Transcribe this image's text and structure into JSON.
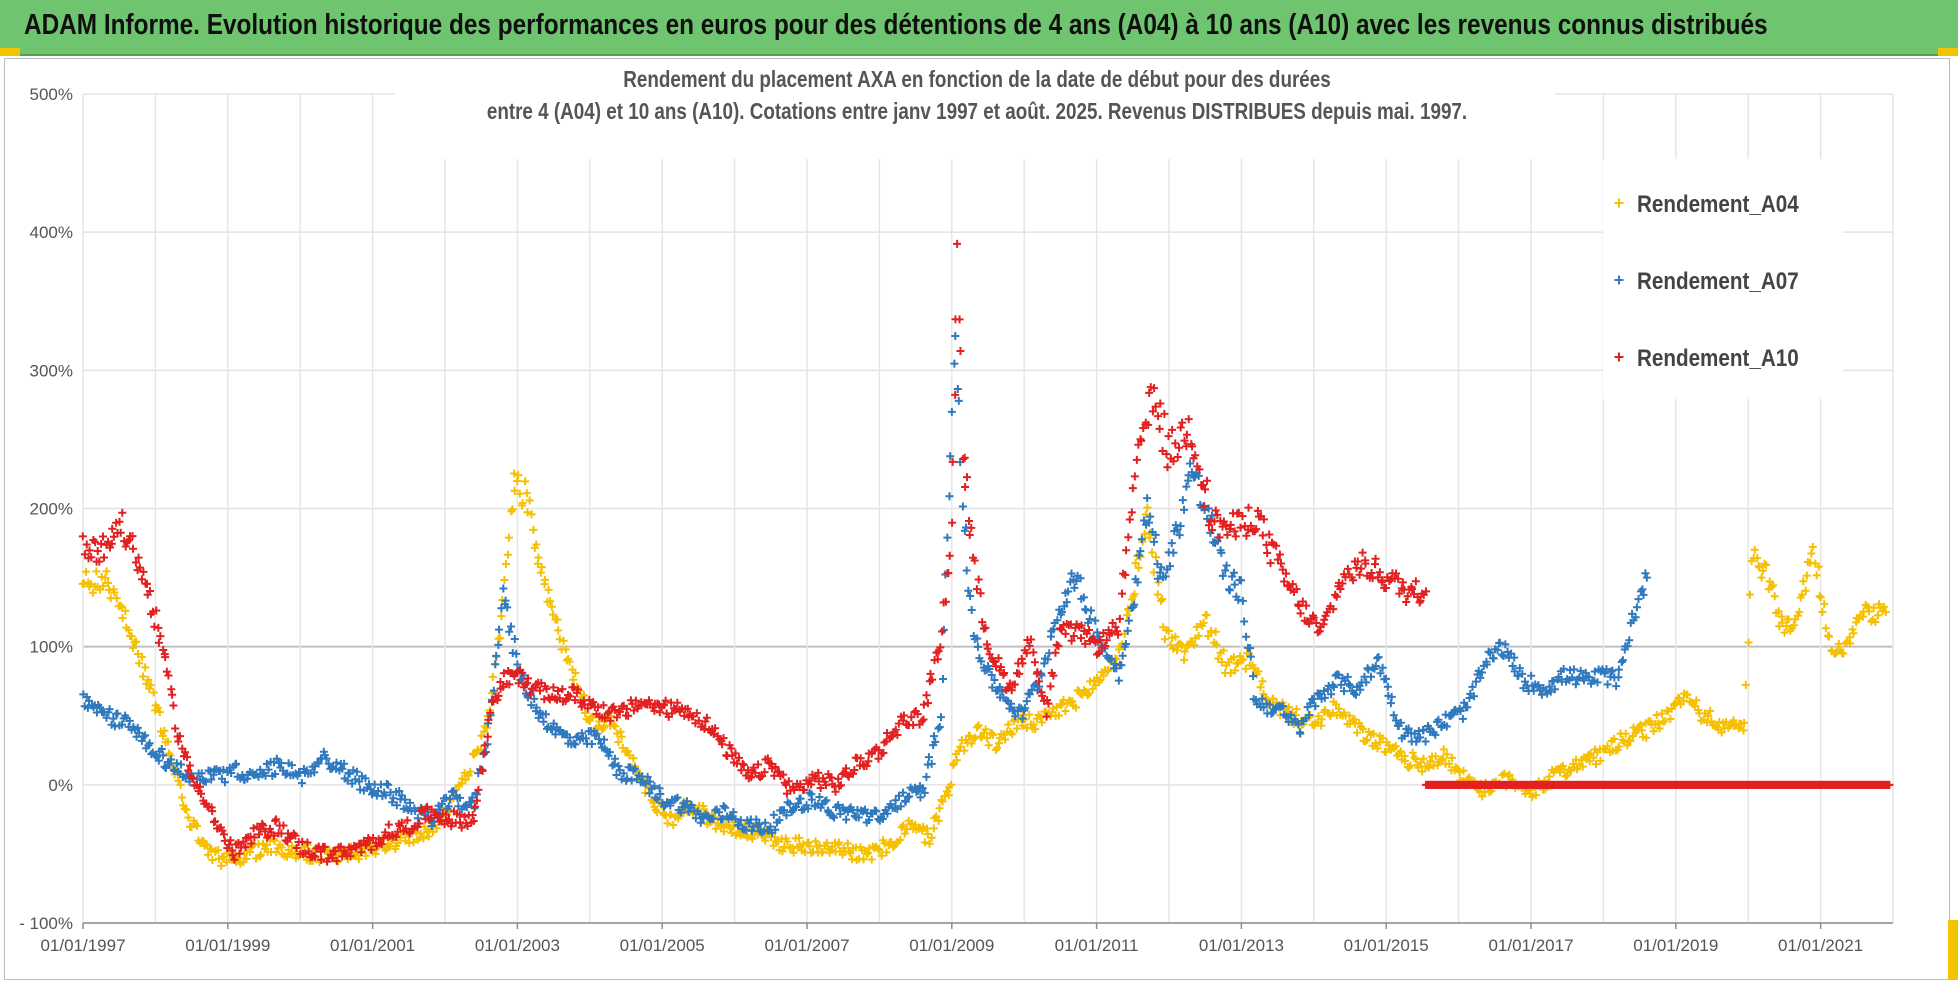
{
  "banner": {
    "text": "ADAM Informe. Evolution historique des performances en euros pour des détentions de 4 ans (A04) à 10 ans (A10) avec les revenus connus distribués",
    "color": "#6fc46f"
  },
  "chart_data": {
    "type": "scatter",
    "title_lines": [
      "Rendement du placement AXA en fonction de la date de début pour des durées",
      "entre 4 (A04) et 10 ans (A10).  Cotations entre janv 1997 et août. 2025. Revenus DISTRIBUES depuis mai. 1997."
    ],
    "x_range": [
      "1997-01-01",
      "2021-12-31"
    ],
    "x_tick_labels": [
      "01/01/1997",
      "01/01/1999",
      "01/01/2001",
      "01/01/2003",
      "01/01/2005",
      "01/01/2007",
      "01/01/2009",
      "01/01/2011",
      "01/01/2013",
      "01/01/2015",
      "01/01/2017",
      "01/01/2019",
      "01/01/2021"
    ],
    "y_range": [
      -100,
      500
    ],
    "y_ticks": [
      -100,
      0,
      100,
      200,
      300,
      400,
      500
    ],
    "y_tick_labels": [
      "- 100%",
      "0%",
      "100%",
      "200%",
      "300%",
      "400%",
      "500%"
    ],
    "grid": true,
    "legend_position": "top-right",
    "marker": "+",
    "series": [
      {
        "name": "Rendement_A04",
        "color": "#f5c000",
        "points": [
          [
            1997.0,
            145
          ],
          [
            1997.3,
            150
          ],
          [
            1997.6,
            120
          ],
          [
            1997.9,
            75
          ],
          [
            1998.1,
            40
          ],
          [
            1998.3,
            5
          ],
          [
            1998.5,
            -30
          ],
          [
            1998.75,
            -50
          ],
          [
            1999.0,
            -55
          ],
          [
            1999.3,
            -50
          ],
          [
            1999.6,
            -45
          ],
          [
            1999.9,
            -47
          ],
          [
            2000.2,
            -50
          ],
          [
            2000.5,
            -52
          ],
          [
            2000.8,
            -50
          ],
          [
            2001.1,
            -44
          ],
          [
            2001.4,
            -40
          ],
          [
            2001.7,
            -35
          ],
          [
            2001.9,
            -25
          ],
          [
            2002.2,
            -5
          ],
          [
            2002.4,
            20
          ],
          [
            2002.6,
            45
          ],
          [
            2002.8,
            130
          ],
          [
            2002.95,
            215
          ],
          [
            2003.1,
            210
          ],
          [
            2003.3,
            160
          ],
          [
            2003.5,
            120
          ],
          [
            2003.8,
            80
          ],
          [
            2004.0,
            45
          ],
          [
            2004.3,
            45
          ],
          [
            2004.6,
            15
          ],
          [
            2004.8,
            -5
          ],
          [
            2005.1,
            -25
          ],
          [
            2005.4,
            -15
          ],
          [
            2005.7,
            -25
          ],
          [
            2006.0,
            -32
          ],
          [
            2006.3,
            -35
          ],
          [
            2006.6,
            -42
          ],
          [
            2007.0,
            -45
          ],
          [
            2007.4,
            -43
          ],
          [
            2007.8,
            -52
          ],
          [
            2008.1,
            -45
          ],
          [
            2008.4,
            -30
          ],
          [
            2008.7,
            -38
          ],
          [
            2008.95,
            -2
          ],
          [
            2009.1,
            25
          ],
          [
            2009.35,
            40
          ],
          [
            2009.6,
            30
          ],
          [
            2009.9,
            45
          ],
          [
            2010.2,
            45
          ],
          [
            2010.5,
            55
          ],
          [
            2010.8,
            65
          ],
          [
            2011.1,
            80
          ],
          [
            2011.35,
            100
          ],
          [
            2011.5,
            140
          ],
          [
            2011.7,
            195
          ],
          [
            2011.95,
            110
          ],
          [
            2012.2,
            95
          ],
          [
            2012.5,
            120
          ],
          [
            2012.8,
            85
          ],
          [
            2013.1,
            90
          ],
          [
            2013.4,
            60
          ],
          [
            2013.7,
            50
          ],
          [
            2014.0,
            45
          ],
          [
            2014.3,
            55
          ],
          [
            2014.6,
            40
          ],
          [
            2014.9,
            30
          ],
          [
            2015.2,
            20
          ],
          [
            2015.5,
            15
          ],
          [
            2015.8,
            20
          ],
          [
            2016.1,
            5
          ],
          [
            2016.4,
            -5
          ],
          [
            2016.7,
            5
          ],
          [
            2017.0,
            -5
          ],
          [
            2017.3,
            5
          ],
          [
            2017.6,
            15
          ],
          [
            2017.9,
            20
          ],
          [
            2018.2,
            30
          ],
          [
            2018.6,
            40
          ],
          [
            2018.9,
            50
          ],
          [
            2019.1,
            65
          ],
          [
            2019.4,
            50
          ],
          [
            2019.7,
            40
          ],
          [
            2019.95,
            45
          ],
          [
            2020.05,
            165
          ],
          [
            2020.3,
            150
          ],
          [
            2020.5,
            110
          ],
          [
            2020.7,
            125
          ],
          [
            2020.9,
            175
          ],
          [
            2021.1,
            105
          ],
          [
            2021.3,
            95
          ],
          [
            2021.6,
            125
          ],
          [
            2021.9,
            125
          ]
        ]
      },
      {
        "name": "Rendement_A07",
        "color": "#2f79bf",
        "points": [
          [
            1997.0,
            60
          ],
          [
            1997.3,
            50
          ],
          [
            1997.6,
            45
          ],
          [
            1997.9,
            30
          ],
          [
            1998.2,
            15
          ],
          [
            1998.5,
            5
          ],
          [
            1998.8,
            5
          ],
          [
            1999.1,
            10
          ],
          [
            1999.4,
            5
          ],
          [
            1999.7,
            15
          ],
          [
            2000.0,
            5
          ],
          [
            2000.3,
            20
          ],
          [
            2000.6,
            10
          ],
          [
            2000.9,
            0
          ],
          [
            2001.2,
            -5
          ],
          [
            2001.5,
            -15
          ],
          [
            2001.8,
            -25
          ],
          [
            2002.1,
            -10
          ],
          [
            2002.4,
            -15
          ],
          [
            2002.6,
            40
          ],
          [
            2002.8,
            140
          ],
          [
            2003.0,
            85
          ],
          [
            2003.2,
            60
          ],
          [
            2003.5,
            40
          ],
          [
            2003.8,
            30
          ],
          [
            2004.1,
            35
          ],
          [
            2004.4,
            10
          ],
          [
            2004.7,
            5
          ],
          [
            2005.0,
            -10
          ],
          [
            2005.3,
            -15
          ],
          [
            2005.6,
            -25
          ],
          [
            2005.9,
            -20
          ],
          [
            2006.2,
            -30
          ],
          [
            2006.5,
            -30
          ],
          [
            2006.8,
            -15
          ],
          [
            2007.1,
            -10
          ],
          [
            2007.4,
            -20
          ],
          [
            2007.7,
            -20
          ],
          [
            2008.0,
            -25
          ],
          [
            2008.3,
            -10
          ],
          [
            2008.6,
            -5
          ],
          [
            2008.85,
            50
          ],
          [
            2009.05,
            340
          ],
          [
            2009.15,
            200
          ],
          [
            2009.3,
            110
          ],
          [
            2009.5,
            80
          ],
          [
            2009.7,
            65
          ],
          [
            2009.95,
            50
          ],
          [
            2010.2,
            75
          ],
          [
            2010.5,
            130
          ],
          [
            2010.7,
            150
          ],
          [
            2011.0,
            110
          ],
          [
            2011.3,
            80
          ],
          [
            2011.5,
            130
          ],
          [
            2011.7,
            200
          ],
          [
            2011.9,
            150
          ],
          [
            2012.1,
            180
          ],
          [
            2012.3,
            230
          ],
          [
            2012.5,
            200
          ],
          [
            2012.8,
            150
          ],
          [
            2013.0,
            140
          ],
          [
            2013.2,
            60
          ],
          [
            2013.5,
            55
          ],
          [
            2013.8,
            40
          ],
          [
            2014.0,
            60
          ],
          [
            2014.3,
            75
          ],
          [
            2014.6,
            70
          ],
          [
            2014.9,
            90
          ],
          [
            2015.2,
            40
          ],
          [
            2015.5,
            35
          ],
          [
            2015.8,
            45
          ],
          [
            2016.1,
            55
          ],
          [
            2016.4,
            90
          ],
          [
            2016.6,
            100
          ],
          [
            2016.9,
            75
          ],
          [
            2017.2,
            70
          ],
          [
            2017.5,
            80
          ],
          [
            2017.8,
            75
          ],
          [
            2018.0,
            80
          ],
          [
            2018.2,
            75
          ],
          [
            2018.4,
            120
          ],
          [
            2018.6,
            150
          ]
        ]
      },
      {
        "name": "Rendement_A10",
        "color": "#e32020",
        "points": [
          [
            1997.0,
            175
          ],
          [
            1997.3,
            170
          ],
          [
            1997.5,
            190
          ],
          [
            1997.7,
            170
          ],
          [
            1997.9,
            140
          ],
          [
            1998.1,
            100
          ],
          [
            1998.3,
            40
          ],
          [
            1998.5,
            5
          ],
          [
            1998.7,
            -10
          ],
          [
            1998.9,
            -35
          ],
          [
            1999.1,
            -50
          ],
          [
            1999.4,
            -35
          ],
          [
            1999.7,
            -30
          ],
          [
            2000.0,
            -45
          ],
          [
            2000.3,
            -50
          ],
          [
            2000.6,
            -50
          ],
          [
            2000.9,
            -45
          ],
          [
            2001.2,
            -35
          ],
          [
            2001.5,
            -30
          ],
          [
            2001.8,
            -20
          ],
          [
            2002.1,
            -25
          ],
          [
            2002.4,
            -25
          ],
          [
            2002.65,
            60
          ],
          [
            2002.8,
            75
          ],
          [
            2003.0,
            80
          ],
          [
            2003.2,
            70
          ],
          [
            2003.5,
            65
          ],
          [
            2003.8,
            65
          ],
          [
            2004.1,
            55
          ],
          [
            2004.4,
            50
          ],
          [
            2004.7,
            60
          ],
          [
            2005.0,
            55
          ],
          [
            2005.3,
            55
          ],
          [
            2005.6,
            45
          ],
          [
            2005.9,
            25
          ],
          [
            2006.2,
            5
          ],
          [
            2006.5,
            15
          ],
          [
            2006.8,
            -5
          ],
          [
            2007.1,
            5
          ],
          [
            2007.4,
            0
          ],
          [
            2007.7,
            15
          ],
          [
            2008.0,
            25
          ],
          [
            2008.3,
            45
          ],
          [
            2008.6,
            50
          ],
          [
            2008.85,
            105
          ],
          [
            2009.0,
            180
          ],
          [
            2009.08,
            395
          ],
          [
            2009.15,
            250
          ],
          [
            2009.3,
            160
          ],
          [
            2009.5,
            100
          ],
          [
            2009.8,
            70
          ],
          [
            2010.1,
            105
          ],
          [
            2010.3,
            50
          ],
          [
            2010.5,
            110
          ],
          [
            2010.8,
            110
          ],
          [
            2011.0,
            100
          ],
          [
            2011.3,
            115
          ],
          [
            2011.6,
            250
          ],
          [
            2011.8,
            280
          ],
          [
            2012.0,
            240
          ],
          [
            2012.3,
            260
          ],
          [
            2012.6,
            190
          ],
          [
            2012.9,
            185
          ],
          [
            2013.2,
            195
          ],
          [
            2013.5,
            160
          ],
          [
            2013.8,
            130
          ],
          [
            2014.1,
            110
          ],
          [
            2014.4,
            150
          ],
          [
            2014.7,
            160
          ],
          [
            2015.0,
            150
          ],
          [
            2015.3,
            140
          ],
          [
            2015.55,
            140
          ]
        ]
      },
      {
        "name": "Rendement_A10",
        "color": "#e32020",
        "points": [
          [
            2015.55,
            0
          ],
          [
            2021.95,
            0
          ]
        ]
      }
    ]
  }
}
